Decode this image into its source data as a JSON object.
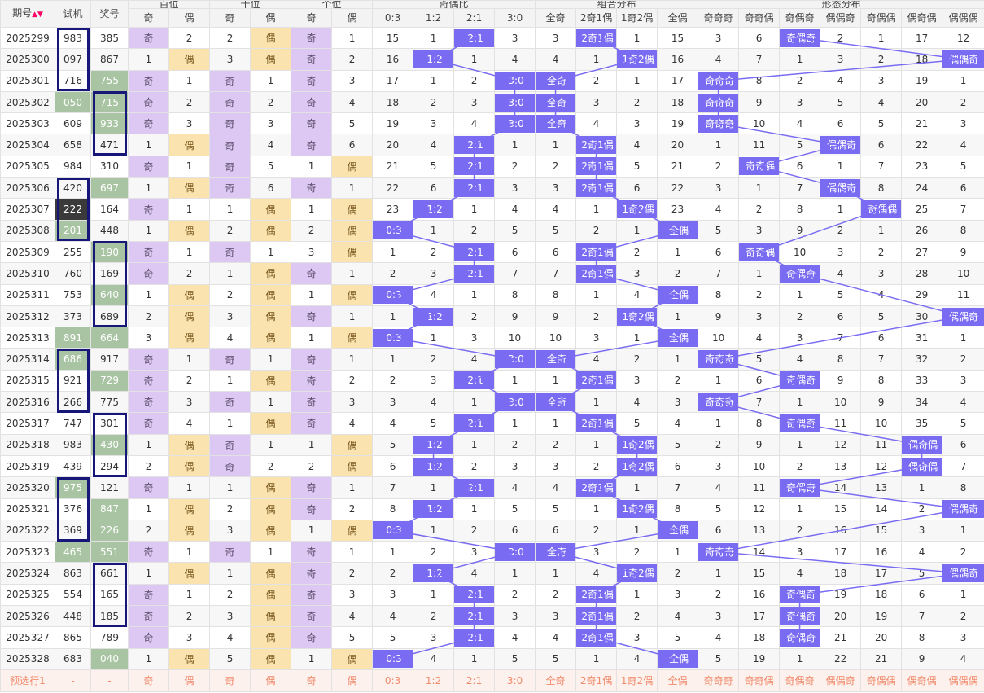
{
  "header": {
    "issue": "期号",
    "trial": "试机",
    "prize": "奖号",
    "groups": [
      "百位",
      "十位",
      "个位",
      "奇偶比",
      "组合分布",
      "形态分布"
    ],
    "sub": [
      "奇",
      "偶",
      "奇",
      "偶",
      "奇",
      "偶",
      "0:3",
      "1:2",
      "2:1",
      "3:0",
      "全奇",
      "2奇1偶",
      "1奇2偶",
      "全偶",
      "奇奇奇",
      "奇奇偶",
      "奇偶奇",
      "偶偶奇",
      "奇偶偶",
      "偶奇偶",
      "偶偶偶"
    ]
  },
  "rows": [
    {
      "issue": "2025299",
      "trial": "983",
      "prize": "385",
      "b": [
        "奇",
        "2"
      ],
      "s": [
        "2",
        "偶"
      ],
      "g": [
        "奇",
        "1"
      ],
      "r": [
        15,
        1,
        "2:1",
        3
      ],
      "c": [
        3,
        "2奇1偶",
        1,
        15
      ],
      "f": [
        3,
        6,
        "奇偶奇",
        2,
        1,
        17,
        12
      ]
    },
    {
      "issue": "2025300",
      "trial": "097",
      "prize": "867",
      "b": [
        "1",
        "偶"
      ],
      "s": [
        "3",
        "偶"
      ],
      "g": [
        "奇",
        "2"
      ],
      "r": [
        16,
        "1:2",
        1,
        4
      ],
      "c": [
        4,
        1,
        "1奇2偶",
        16
      ],
      "f": [
        4,
        7,
        1,
        3,
        2,
        18,
        "偶偶奇"
      ]
    },
    {
      "issue": "2025301",
      "trial": "716",
      "prize": "755",
      "b": [
        "奇",
        "1"
      ],
      "s": [
        "奇",
        "1"
      ],
      "g": [
        "奇",
        "3"
      ],
      "r": [
        17,
        1,
        2,
        "3:0"
      ],
      "c": [
        "全奇",
        2,
        1,
        17
      ],
      "f": [
        "奇奇奇",
        8,
        2,
        4,
        3,
        19,
        1
      ]
    },
    {
      "issue": "2025302",
      "trial": "050",
      "prize": "715",
      "b": [
        "奇",
        "2"
      ],
      "s": [
        "奇",
        "2"
      ],
      "g": [
        "奇",
        "4"
      ],
      "r": [
        18,
        2,
        3,
        "3:0"
      ],
      "c": [
        "全奇",
        3,
        2,
        18
      ],
      "f": [
        "奇奇奇",
        9,
        3,
        5,
        4,
        20,
        2
      ]
    },
    {
      "issue": "2025303",
      "trial": "609",
      "prize": "933",
      "b": [
        "奇",
        "3"
      ],
      "s": [
        "奇",
        "3"
      ],
      "g": [
        "奇",
        "5"
      ],
      "r": [
        19,
        3,
        4,
        "3:0"
      ],
      "c": [
        "全奇",
        4,
        3,
        19
      ],
      "f": [
        "奇奇奇",
        10,
        4,
        6,
        5,
        21,
        3
      ]
    },
    {
      "issue": "2025304",
      "trial": "658",
      "prize": "471",
      "b": [
        "1",
        "偶"
      ],
      "s": [
        "奇",
        "4"
      ],
      "g": [
        "奇",
        "6"
      ],
      "r": [
        20,
        4,
        "2:1",
        1
      ],
      "c": [
        1,
        "2奇1偶",
        4,
        20
      ],
      "f": [
        1,
        11,
        5,
        "偶偶奇",
        6,
        22,
        4
      ]
    },
    {
      "issue": "2025305",
      "trial": "984",
      "prize": "310",
      "b": [
        "奇",
        "1"
      ],
      "s": [
        "奇",
        "5"
      ],
      "g": [
        "1",
        "偶"
      ],
      "r": [
        21,
        5,
        "2:1",
        2
      ],
      "c": [
        2,
        "2奇1偶",
        5,
        21
      ],
      "f": [
        2,
        "奇奇偶",
        6,
        1,
        7,
        23,
        5
      ]
    },
    {
      "issue": "2025306",
      "trial": "420",
      "prize": "697",
      "b": [
        "1",
        "偶"
      ],
      "s": [
        "奇",
        "6"
      ],
      "g": [
        "奇",
        "1"
      ],
      "r": [
        22,
        6,
        "2:1",
        3
      ],
      "c": [
        3,
        "2奇1偶",
        6,
        22
      ],
      "f": [
        3,
        1,
        7,
        "偶偶奇",
        8,
        24,
        6
      ]
    },
    {
      "issue": "2025307",
      "trial": "222",
      "prize": "164",
      "b": [
        "奇",
        "1"
      ],
      "s": [
        "1",
        "偶"
      ],
      "g": [
        "1",
        "偶"
      ],
      "r": [
        23,
        "1:2",
        1,
        4
      ],
      "c": [
        4,
        1,
        "1奇2偶",
        23
      ],
      "f": [
        4,
        2,
        8,
        1,
        "奇偶偶",
        25,
        7
      ]
    },
    {
      "issue": "2025308",
      "trial": "201",
      "prize": "448",
      "b": [
        "1",
        "偶"
      ],
      "s": [
        "2",
        "偶"
      ],
      "g": [
        "2",
        "偶"
      ],
      "r": [
        "0:3",
        1,
        2,
        5
      ],
      "c": [
        5,
        2,
        1,
        "全偶"
      ],
      "f": [
        5,
        3,
        9,
        2,
        1,
        26,
        8
      ]
    },
    {
      "issue": "2025309",
      "trial": "255",
      "prize": "190",
      "b": [
        "奇",
        "1"
      ],
      "s": [
        "奇",
        "1"
      ],
      "g": [
        "3",
        "偶"
      ],
      "r": [
        1,
        2,
        "2:1",
        6
      ],
      "c": [
        6,
        "2奇1偶",
        2,
        1
      ],
      "f": [
        6,
        "奇奇偶",
        10,
        3,
        2,
        27,
        9
      ]
    },
    {
      "issue": "2025310",
      "trial": "760",
      "prize": "169",
      "b": [
        "奇",
        "2"
      ],
      "s": [
        "1",
        "偶"
      ],
      "g": [
        "奇",
        "1"
      ],
      "r": [
        2,
        3,
        "2:1",
        7
      ],
      "c": [
        7,
        "2奇1偶",
        3,
        2
      ],
      "f": [
        7,
        1,
        "奇偶奇",
        4,
        3,
        28,
        10
      ]
    },
    {
      "issue": "2025311",
      "trial": "753",
      "prize": "640",
      "b": [
        "1",
        "偶"
      ],
      "s": [
        "2",
        "偶"
      ],
      "g": [
        "1",
        "偶"
      ],
      "r": [
        "0:3",
        4,
        1,
        8
      ],
      "c": [
        8,
        1,
        4,
        "全偶"
      ],
      "f": [
        8,
        2,
        1,
        5,
        4,
        29,
        11
      ]
    },
    {
      "issue": "2025312",
      "trial": "373",
      "prize": "689",
      "b": [
        "2",
        "偶"
      ],
      "s": [
        "3",
        "偶"
      ],
      "g": [
        "奇",
        "1"
      ],
      "r": [
        1,
        "1:2",
        2,
        9
      ],
      "c": [
        9,
        2,
        "1奇2偶",
        1
      ],
      "f": [
        9,
        3,
        2,
        6,
        5,
        30,
        "偶偶奇"
      ]
    },
    {
      "issue": "2025313",
      "trial": "891",
      "prize": "664",
      "b": [
        "3",
        "偶"
      ],
      "s": [
        "4",
        "偶"
      ],
      "g": [
        "1",
        "偶"
      ],
      "r": [
        "0:3",
        1,
        3,
        10
      ],
      "c": [
        10,
        3,
        1,
        "全偶"
      ],
      "f": [
        10,
        4,
        3,
        7,
        6,
        31,
        1
      ]
    },
    {
      "issue": "2025314",
      "trial": "686",
      "prize": "917",
      "b": [
        "奇",
        "1"
      ],
      "s": [
        "奇",
        "1"
      ],
      "g": [
        "奇",
        "1"
      ],
      "r": [
        1,
        2,
        4,
        "3:0"
      ],
      "c": [
        "全奇",
        4,
        2,
        1
      ],
      "f": [
        "奇奇奇",
        5,
        4,
        8,
        7,
        32,
        2
      ]
    },
    {
      "issue": "2025315",
      "trial": "921",
      "prize": "729",
      "b": [
        "奇",
        "2"
      ],
      "s": [
        "1",
        "偶"
      ],
      "g": [
        "奇",
        "2"
      ],
      "r": [
        2,
        3,
        "2:1",
        1
      ],
      "c": [
        1,
        "2奇1偶",
        3,
        2
      ],
      "f": [
        1,
        6,
        "奇偶奇",
        9,
        8,
        33,
        3
      ]
    },
    {
      "issue": "2025316",
      "trial": "266",
      "prize": "775",
      "b": [
        "奇",
        "3"
      ],
      "s": [
        "奇",
        "1"
      ],
      "g": [
        "奇",
        "3"
      ],
      "r": [
        3,
        4,
        1,
        "3:0"
      ],
      "c": [
        "全奇",
        1,
        4,
        3
      ],
      "f": [
        "奇奇奇",
        7,
        1,
        10,
        9,
        34,
        4
      ]
    },
    {
      "issue": "2025317",
      "trial": "747",
      "prize": "301",
      "b": [
        "奇",
        "4"
      ],
      "s": [
        "1",
        "偶"
      ],
      "g": [
        "奇",
        "4"
      ],
      "r": [
        4,
        5,
        "2:1",
        1
      ],
      "c": [
        1,
        "2奇1偶",
        5,
        4
      ],
      "f": [
        1,
        8,
        "奇偶奇",
        11,
        10,
        35,
        5
      ]
    },
    {
      "issue": "2025318",
      "trial": "983",
      "prize": "430",
      "b": [
        "1",
        "偶"
      ],
      "s": [
        "奇",
        "1"
      ],
      "g": [
        "1",
        "偶"
      ],
      "r": [
        5,
        "1:2",
        1,
        2
      ],
      "c": [
        2,
        1,
        "1奇2偶",
        5
      ],
      "f": [
        2,
        9,
        1,
        12,
        11,
        "偶奇偶",
        6
      ]
    },
    {
      "issue": "2025319",
      "trial": "439",
      "prize": "294",
      "b": [
        "2",
        "偶"
      ],
      "s": [
        "奇",
        "2"
      ],
      "g": [
        "2",
        "偶"
      ],
      "r": [
        6,
        "1:2",
        2,
        3
      ],
      "c": [
        3,
        2,
        "1奇2偶",
        6
      ],
      "f": [
        3,
        10,
        2,
        13,
        12,
        "偶奇偶",
        7
      ]
    },
    {
      "issue": "2025320",
      "trial": "975",
      "prize": "121",
      "b": [
        "奇",
        "1"
      ],
      "s": [
        "1",
        "偶"
      ],
      "g": [
        "奇",
        "1"
      ],
      "r": [
        7,
        1,
        "2:1",
        4
      ],
      "c": [
        4,
        "2奇1偶",
        1,
        7
      ],
      "f": [
        4,
        11,
        "奇偶奇",
        14,
        13,
        1,
        8
      ]
    },
    {
      "issue": "2025321",
      "trial": "376",
      "prize": "847",
      "b": [
        "1",
        "偶"
      ],
      "s": [
        "2",
        "偶"
      ],
      "g": [
        "奇",
        "2"
      ],
      "r": [
        8,
        "1:2",
        1,
        5
      ],
      "c": [
        5,
        1,
        "1奇2偶",
        8
      ],
      "f": [
        5,
        12,
        1,
        15,
        14,
        2,
        "偶偶奇"
      ]
    },
    {
      "issue": "2025322",
      "trial": "369",
      "prize": "226",
      "b": [
        "2",
        "偶"
      ],
      "s": [
        "3",
        "偶"
      ],
      "g": [
        "1",
        "偶"
      ],
      "r": [
        "0:3",
        1,
        2,
        6
      ],
      "c": [
        6,
        2,
        1,
        "全偶"
      ],
      "f": [
        6,
        13,
        2,
        16,
        15,
        3,
        1
      ]
    },
    {
      "issue": "2025323",
      "trial": "465",
      "prize": "551",
      "b": [
        "奇",
        "1"
      ],
      "s": [
        "奇",
        "1"
      ],
      "g": [
        "奇",
        "1"
      ],
      "r": [
        1,
        2,
        3,
        "3:0"
      ],
      "c": [
        "全奇",
        3,
        2,
        1
      ],
      "f": [
        "奇奇奇",
        14,
        3,
        17,
        16,
        4,
        2
      ]
    },
    {
      "issue": "2025324",
      "trial": "863",
      "prize": "661",
      "b": [
        "1",
        "偶"
      ],
      "s": [
        "1",
        "偶"
      ],
      "g": [
        "奇",
        "2"
      ],
      "r": [
        2,
        "1:2",
        4,
        1
      ],
      "c": [
        1,
        4,
        "1奇2偶",
        2
      ],
      "f": [
        1,
        15,
        4,
        18,
        17,
        5,
        "偶偶奇"
      ]
    },
    {
      "issue": "2025325",
      "trial": "554",
      "prize": "165",
      "b": [
        "奇",
        "1"
      ],
      "s": [
        "2",
        "偶"
      ],
      "g": [
        "奇",
        "3"
      ],
      "r": [
        3,
        1,
        "2:1",
        2
      ],
      "c": [
        2,
        "2奇1偶",
        1,
        3
      ],
      "f": [
        2,
        16,
        "奇偶奇",
        19,
        18,
        6,
        1
      ]
    },
    {
      "issue": "2025326",
      "trial": "448",
      "prize": "185",
      "b": [
        "奇",
        "2"
      ],
      "s": [
        "3",
        "偶"
      ],
      "g": [
        "奇",
        "4"
      ],
      "r": [
        4,
        2,
        "2:1",
        3
      ],
      "c": [
        3,
        "2奇1偶",
        2,
        4
      ],
      "f": [
        3,
        17,
        "奇偶奇",
        20,
        19,
        7,
        2
      ]
    },
    {
      "issue": "2025327",
      "trial": "865",
      "prize": "789",
      "b": [
        "奇",
        "3"
      ],
      "s": [
        "4",
        "偶"
      ],
      "g": [
        "奇",
        "5"
      ],
      "r": [
        5,
        3,
        "2:1",
        4
      ],
      "c": [
        4,
        "2奇1偶",
        3,
        5
      ],
      "f": [
        4,
        18,
        "奇偶奇",
        21,
        20,
        8,
        3
      ]
    },
    {
      "issue": "2025328",
      "trial": "683",
      "prize": "040",
      "b": [
        "1",
        "偶"
      ],
      "s": [
        "5",
        "偶"
      ],
      "g": [
        "1",
        "偶"
      ],
      "r": [
        "0:3",
        4,
        1,
        5
      ],
      "c": [
        5,
        1,
        4,
        "全偶"
      ],
      "f": [
        5,
        19,
        1,
        22,
        21,
        9,
        4
      ]
    }
  ],
  "preselect": {
    "label": "预选行1",
    "trial": "-",
    "prize": "-",
    "cells": [
      "奇",
      "偶",
      "奇",
      "偶",
      "奇",
      "偶",
      "0:3",
      "1:2",
      "2:1",
      "3:0",
      "全奇",
      "2奇1偶",
      "1奇2偶",
      "全偶",
      "奇奇奇",
      "奇奇偶",
      "奇偶奇",
      "偶偶奇",
      "奇偶偶",
      "偶奇偶",
      "偶偶偶"
    ]
  },
  "colors": {
    "tag": "#7a6cf2",
    "odd": "#dcc8f2",
    "even": "#fbe3b0",
    "green": "#a8c4a2",
    "box": "#17177a"
  },
  "icons": {
    "sort": "sort-arrows-icon"
  }
}
